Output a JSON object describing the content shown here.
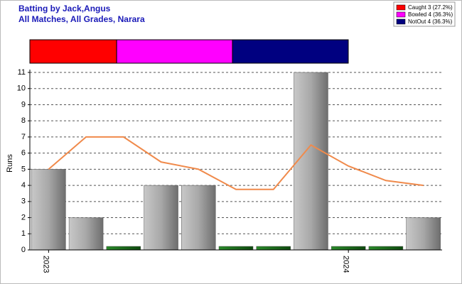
{
  "chart_data": {
    "type": "bar",
    "title": "Batting by Jack,Angus",
    "subtitle": "All Matches, All Grades, Narara",
    "y_label": "Runs",
    "categories": [
      "2023",
      null,
      null,
      null,
      null,
      null,
      null,
      null,
      "2024",
      null,
      null
    ],
    "values": [
      5,
      2,
      0,
      4,
      4,
      0,
      0,
      11,
      0,
      0,
      2
    ],
    "colors": [
      "#a0a0a0",
      "#a0a0a0",
      "#1a6b1a",
      "#a0a0a0",
      "#a0a0a0",
      "#1a6b1a",
      "#1a6b1a",
      "#a0a0a0",
      "#1a6b1a",
      "#1a6b1a",
      "#a0a0a0"
    ],
    "trend": {
      "color": "#f08a4b",
      "values": [
        5,
        7,
        7,
        5.45,
        5,
        3.75,
        3.75,
        6.5,
        5.2,
        4.3,
        4
      ]
    },
    "ylim": [
      0,
      11
    ],
    "yticks": [
      0,
      1,
      2,
      3,
      4,
      5,
      6,
      7,
      8,
      9,
      10,
      11
    ],
    "grid": true,
    "legend": "top-right",
    "summary": {
      "type": "stacked-bar",
      "series": [
        {
          "name": "Caught 3 (27.2%)",
          "color": "#ff0000",
          "value": 27.2
        },
        {
          "name": "Bowled 4 (36.3%)",
          "color": "#ff00ff",
          "value": 36.3
        },
        {
          "name": "NotOut 4 (36.3%)",
          "color": "#000080",
          "value": 36.3
        }
      ]
    }
  }
}
